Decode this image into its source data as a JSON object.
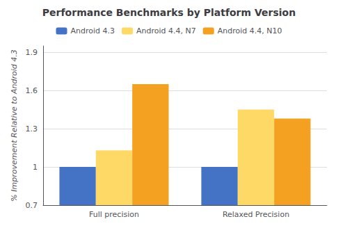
{
  "chart_data": {
    "type": "bar",
    "title": "Performance Benchmarks by Platform Version",
    "ylabel": "% Improvement Relative to Android 4.3",
    "categories": [
      "Full precision",
      "Relaxed Precision"
    ],
    "series": [
      {
        "name": "Android 4.3",
        "color": "#4472C4",
        "values": [
          1.0,
          1.0
        ]
      },
      {
        "name": "Android 4.4, N7",
        "color": "#FFD966",
        "values": [
          1.13,
          1.45
        ]
      },
      {
        "name": "Android 4.4, N10",
        "color": "#F4A020",
        "values": [
          1.65,
          1.38
        ]
      }
    ],
    "ylim": [
      0.7,
      1.95
    ],
    "yticks": [
      0.7,
      1.0,
      1.3,
      1.6,
      1.9
    ],
    "grid": true,
    "legend": "top"
  }
}
